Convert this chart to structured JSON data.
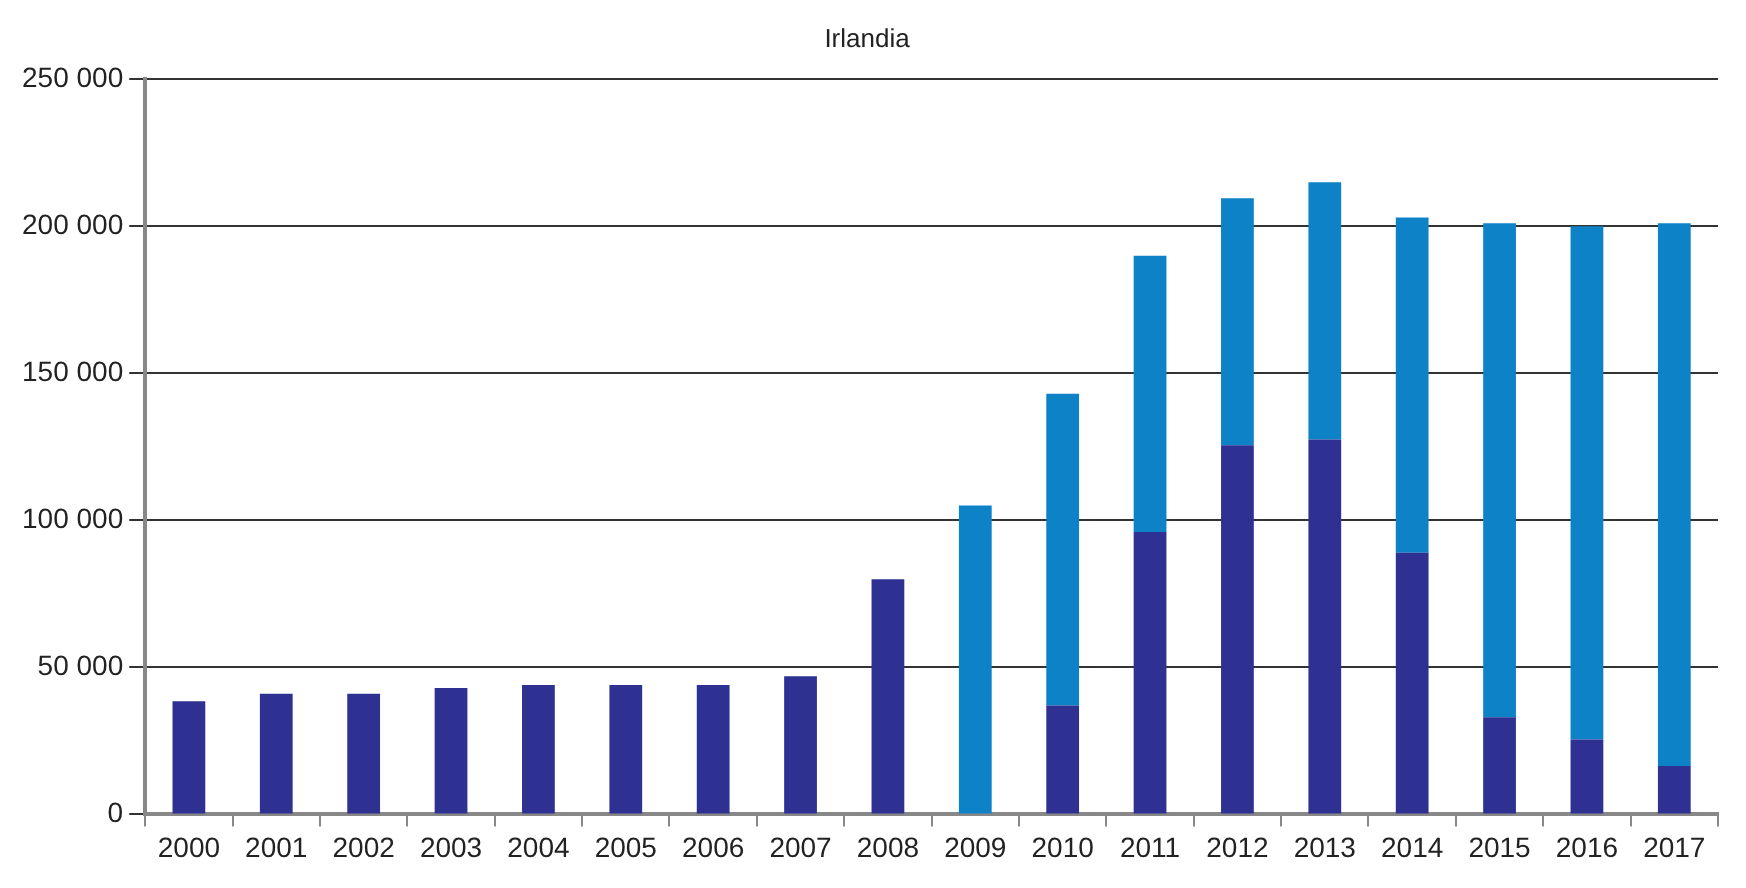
{
  "chart_data": {
    "type": "bar",
    "title": "Irlandia",
    "stacked": true,
    "grid": "y",
    "legend": false,
    "categories": [
      "2000",
      "2001",
      "2002",
      "2003",
      "2004",
      "2005",
      "2006",
      "2007",
      "2008",
      "2009",
      "2010",
      "2011",
      "2012",
      "2013",
      "2014",
      "2015",
      "2016",
      "2017"
    ],
    "series": [
      {
        "color": "#2e3192",
        "values": [
          38500,
          41000,
          41000,
          43000,
          44000,
          44000,
          44000,
          47000,
          80000,
          0,
          37000,
          96000,
          125500,
          127500,
          89000,
          33000,
          25500,
          16500
        ]
      },
      {
        "color": "#0e82c6",
        "values": [
          null,
          null,
          null,
          null,
          null,
          null,
          null,
          null,
          null,
          105000,
          106000,
          94000,
          84000,
          87500,
          114000,
          168000,
          174500,
          184500
        ]
      }
    ],
    "ylim": [
      0,
      250000
    ],
    "yticks": [
      0,
      {
        "value": 50000,
        "label": "50 000"
      },
      {
        "value": 100000,
        "label": "100 000"
      },
      {
        "value": 150000,
        "label": "150 000"
      },
      {
        "value": 200000,
        "label": "200 000"
      },
      {
        "value": 250000,
        "label": "250 000"
      }
    ]
  }
}
